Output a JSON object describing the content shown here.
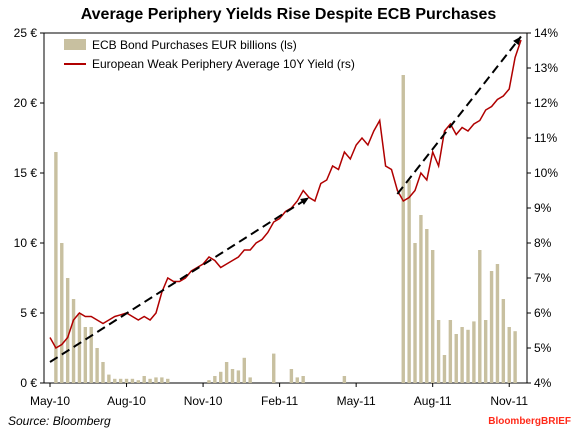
{
  "chart_data": {
    "type": "bar+line",
    "title": "Average Periphery Yields Rise Despite ECB Purchases",
    "x_tick_labels": [
      "May-10",
      "Aug-10",
      "Nov-10",
      "Feb-11",
      "May-11",
      "Aug-11",
      "Nov-11"
    ],
    "y_left": {
      "ylim": [
        0,
        25
      ],
      "tick_labels": [
        "0 €",
        "5 €",
        "10 €",
        "15 €",
        "20 €",
        "25 €"
      ]
    },
    "y_right": {
      "ylim": [
        4,
        14
      ],
      "tick_labels": [
        "4%",
        "5%",
        "6%",
        "7%",
        "8%",
        "9%",
        "10%",
        "11%",
        "12%",
        "13%",
        "14%"
      ]
    },
    "legend": {
      "placement": "top-left"
    },
    "grid": false,
    "series": [
      {
        "name": "ECB Bond Purchases EUR billions (ls)",
        "kind": "bar",
        "axis": "left",
        "color": "#c8c0a0",
        "x_week_index": [
          0,
          1,
          2,
          3,
          4,
          5,
          6,
          7,
          8,
          9,
          10,
          11,
          12,
          13,
          14,
          15,
          16,
          17,
          18,
          19,
          20,
          21,
          22,
          23,
          24,
          25,
          26,
          27,
          28,
          29,
          30,
          31,
          32,
          33,
          34,
          35,
          36,
          37,
          38,
          39,
          40,
          41,
          42,
          43,
          44,
          45,
          46,
          47,
          48,
          49,
          50,
          51,
          52,
          53,
          54,
          55,
          56,
          57,
          58,
          59,
          60,
          61,
          62,
          63,
          64,
          65,
          66,
          67,
          68,
          69,
          70,
          71,
          72,
          73,
          74,
          75,
          76,
          77,
          78,
          79,
          80
        ],
        "values": [
          0,
          16.5,
          10,
          7.5,
          6,
          5,
          4,
          4,
          2.5,
          1.5,
          0.6,
          0.3,
          0.3,
          0.3,
          0.3,
          0.2,
          0.5,
          0.3,
          0.4,
          0.4,
          0.3,
          0,
          0,
          0,
          0,
          0,
          0,
          0.2,
          0.5,
          0.8,
          1.5,
          1,
          0.9,
          1.8,
          0.4,
          0,
          0,
          0,
          2.1,
          0,
          0,
          1,
          0.4,
          0.5,
          0,
          0,
          0,
          0,
          0,
          0,
          0.5,
          0,
          0,
          0,
          0,
          0,
          0,
          0,
          0,
          0,
          22,
          14.5,
          10,
          12,
          11,
          9.5,
          4.5,
          2,
          4.5,
          3.5,
          4,
          3.8,
          4.4,
          9.5,
          4.5,
          8,
          8.5,
          6,
          4,
          3.7,
          0
        ]
      },
      {
        "name": "European Weak Periphery Average 10Y Yield (rs)",
        "kind": "line",
        "axis": "right",
        "color": "#b00000",
        "x_week_index": [
          0,
          1,
          2,
          3,
          4,
          5,
          6,
          7,
          8,
          9,
          10,
          11,
          12,
          13,
          14,
          15,
          16,
          17,
          18,
          19,
          20,
          21,
          22,
          23,
          24,
          25,
          26,
          27,
          28,
          29,
          30,
          31,
          32,
          33,
          34,
          35,
          36,
          37,
          38,
          39,
          40,
          41,
          42,
          43,
          44,
          45,
          46,
          47,
          48,
          49,
          50,
          51,
          52,
          53,
          54,
          55,
          56,
          57,
          58,
          59,
          60,
          61,
          62,
          63,
          64,
          65,
          66,
          67,
          68,
          69,
          70,
          71,
          72,
          73,
          74,
          75,
          76,
          77,
          78,
          79,
          80
        ],
        "values": [
          5.3,
          5.0,
          5.1,
          5.3,
          5.8,
          6.0,
          5.9,
          5.9,
          5.8,
          5.7,
          5.8,
          5.9,
          5.95,
          6.0,
          5.9,
          5.8,
          5.9,
          5.8,
          6.0,
          6.6,
          7.0,
          6.9,
          6.9,
          7.0,
          7.2,
          7.3,
          7.4,
          7.6,
          7.5,
          7.3,
          7.4,
          7.5,
          7.6,
          7.8,
          7.8,
          8.0,
          8.1,
          8.3,
          8.6,
          8.7,
          8.9,
          9.0,
          9.2,
          9.5,
          9.3,
          9.2,
          9.7,
          9.8,
          10.2,
          10.1,
          10.6,
          10.4,
          10.8,
          11.0,
          10.8,
          11.2,
          11.5,
          10.2,
          10.1,
          9.5,
          9.2,
          9.3,
          9.5,
          10.0,
          9.8,
          10.6,
          10.2,
          11.2,
          11.4,
          11.1,
          11.3,
          11.2,
          11.4,
          11.5,
          11.8,
          11.9,
          12.1,
          12.2,
          12.4,
          13.3,
          13.8
        ]
      }
    ],
    "trend_lines": [
      {
        "from_week": 0,
        "from_value": 4.6,
        "to_week": 44,
        "to_value": 9.3,
        "axis": "right",
        "style": "dashed"
      },
      {
        "from_week": 59,
        "from_value": 9.4,
        "to_week": 80,
        "to_value": 13.9,
        "axis": "right",
        "style": "dashed"
      }
    ]
  },
  "source": "Source: Bloomberg",
  "brand": "BloombergBRIEF"
}
